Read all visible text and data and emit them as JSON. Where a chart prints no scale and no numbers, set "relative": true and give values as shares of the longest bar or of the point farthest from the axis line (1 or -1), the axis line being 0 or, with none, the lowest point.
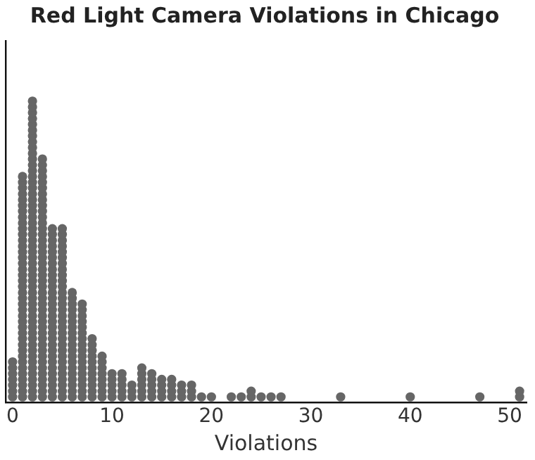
{
  "chart_data": {
    "type": "scatter",
    "title": "Red Light Camera Violations in Chicago",
    "xlabel": "Violations",
    "x": [
      0,
      0,
      0,
      0,
      0,
      0,
      0,
      1,
      1,
      1,
      1,
      1,
      1,
      1,
      1,
      1,
      1,
      1,
      1,
      1,
      1,
      1,
      1,
      1,
      1,
      1,
      1,
      1,
      1,
      1,
      1,
      1,
      1,
      1,
      1,
      1,
      1,
      1,
      1,
      1,
      1,
      1,
      1,
      1,
      1,
      1,
      2,
      2,
      2,
      2,
      2,
      2,
      2,
      2,
      2,
      2,
      2,
      2,
      2,
      2,
      2,
      2,
      2,
      2,
      2,
      2,
      2,
      2,
      2,
      2,
      2,
      2,
      2,
      2,
      2,
      2,
      2,
      2,
      2,
      2,
      2,
      2,
      2,
      2,
      2,
      2,
      2,
      2,
      2,
      2,
      2,
      2,
      2,
      2,
      2,
      2,
      2,
      2,
      3,
      3,
      3,
      3,
      3,
      3,
      3,
      3,
      3,
      3,
      3,
      3,
      3,
      3,
      3,
      3,
      3,
      3,
      3,
      3,
      3,
      3,
      3,
      3,
      3,
      3,
      3,
      3,
      3,
      3,
      3,
      3,
      3,
      3,
      3,
      3,
      3,
      3,
      3,
      3,
      3,
      3,
      4,
      4,
      4,
      4,
      4,
      4,
      4,
      4,
      4,
      4,
      4,
      4,
      4,
      4,
      4,
      4,
      4,
      4,
      4,
      4,
      4,
      4,
      4,
      4,
      4,
      4,
      4,
      4,
      4,
      4,
      5,
      5,
      5,
      5,
      5,
      5,
      5,
      5,
      5,
      5,
      5,
      5,
      5,
      5,
      5,
      5,
      5,
      5,
      5,
      5,
      5,
      5,
      5,
      5,
      5,
      5,
      5,
      5,
      5,
      5,
      6,
      6,
      6,
      6,
      6,
      6,
      6,
      6,
      6,
      6,
      6,
      6,
      6,
      6,
      6,
      6,
      6,
      6,
      6,
      7,
      7,
      7,
      7,
      7,
      7,
      7,
      7,
      7,
      7,
      7,
      7,
      7,
      7,
      7,
      7,
      7,
      8,
      8,
      8,
      8,
      8,
      8,
      8,
      8,
      8,
      8,
      8,
      9,
      9,
      9,
      9,
      9,
      9,
      9,
      9,
      10,
      10,
      10,
      10,
      10,
      11,
      11,
      11,
      11,
      11,
      12,
      12,
      12,
      13,
      13,
      13,
      13,
      13,
      13,
      14,
      14,
      14,
      14,
      14,
      15,
      15,
      15,
      15,
      16,
      16,
      16,
      16,
      17,
      17,
      17,
      18,
      18,
      18,
      19,
      20,
      22,
      23,
      24,
      24,
      25,
      26,
      27,
      33,
      40,
      47,
      51,
      51
    ],
    "values": [
      0.019,
      0.038,
      0.058,
      0.077,
      0.096,
      0.115,
      0.135,
      0.019,
      0.038,
      0.058,
      0.077,
      0.096,
      0.115,
      0.135,
      0.154,
      0.173,
      0.192,
      0.212,
      0.231,
      0.25,
      0.269,
      0.288,
      0.308,
      0.327,
      0.346,
      0.365,
      0.385,
      0.404,
      0.423,
      0.442,
      0.462,
      0.481,
      0.5,
      0.519,
      0.538,
      0.558,
      0.577,
      0.596,
      0.615,
      0.635,
      0.654,
      0.673,
      0.692,
      0.712,
      0.731,
      0.75,
      0.019,
      0.038,
      0.058,
      0.077,
      0.096,
      0.115,
      0.135,
      0.154,
      0.173,
      0.192,
      0.212,
      0.231,
      0.25,
      0.269,
      0.288,
      0.308,
      0.327,
      0.346,
      0.365,
      0.385,
      0.404,
      0.423,
      0.442,
      0.462,
      0.481,
      0.5,
      0.519,
      0.538,
      0.558,
      0.577,
      0.596,
      0.615,
      0.635,
      0.654,
      0.673,
      0.692,
      0.712,
      0.731,
      0.75,
      0.769,
      0.788,
      0.808,
      0.827,
      0.846,
      0.865,
      0.885,
      0.904,
      0.923,
      0.942,
      0.962,
      0.981,
      1,
      0.019,
      0.038,
      0.058,
      0.077,
      0.096,
      0.115,
      0.135,
      0.154,
      0.173,
      0.192,
      0.212,
      0.231,
      0.25,
      0.269,
      0.288,
      0.308,
      0.327,
      0.346,
      0.365,
      0.385,
      0.404,
      0.423,
      0.442,
      0.462,
      0.481,
      0.5,
      0.519,
      0.538,
      0.558,
      0.577,
      0.596,
      0.615,
      0.635,
      0.654,
      0.673,
      0.692,
      0.712,
      0.731,
      0.75,
      0.769,
      0.788,
      0.808,
      0.019,
      0.038,
      0.058,
      0.077,
      0.096,
      0.115,
      0.135,
      0.154,
      0.173,
      0.192,
      0.212,
      0.231,
      0.25,
      0.269,
      0.288,
      0.308,
      0.327,
      0.346,
      0.365,
      0.385,
      0.404,
      0.423,
      0.442,
      0.462,
      0.481,
      0.5,
      0.519,
      0.538,
      0.558,
      0.577,
      0.019,
      0.038,
      0.058,
      0.077,
      0.096,
      0.115,
      0.135,
      0.154,
      0.173,
      0.192,
      0.212,
      0.231,
      0.25,
      0.269,
      0.288,
      0.308,
      0.327,
      0.346,
      0.365,
      0.385,
      0.404,
      0.423,
      0.442,
      0.462,
      0.481,
      0.5,
      0.519,
      0.538,
      0.558,
      0.577,
      0.019,
      0.038,
      0.058,
      0.077,
      0.096,
      0.115,
      0.135,
      0.154,
      0.173,
      0.192,
      0.212,
      0.231,
      0.25,
      0.269,
      0.288,
      0.308,
      0.327,
      0.346,
      0.365,
      0.019,
      0.038,
      0.058,
      0.077,
      0.096,
      0.115,
      0.135,
      0.154,
      0.173,
      0.192,
      0.212,
      0.231,
      0.25,
      0.269,
      0.288,
      0.308,
      0.327,
      0.019,
      0.038,
      0.058,
      0.077,
      0.096,
      0.115,
      0.135,
      0.154,
      0.173,
      0.192,
      0.212,
      0.019,
      0.038,
      0.058,
      0.077,
      0.096,
      0.115,
      0.135,
      0.154,
      0.019,
      0.038,
      0.058,
      0.077,
      0.096,
      0.019,
      0.038,
      0.058,
      0.077,
      0.096,
      0.019,
      0.038,
      0.058,
      0.019,
      0.038,
      0.058,
      0.077,
      0.096,
      0.115,
      0.019,
      0.038,
      0.058,
      0.077,
      0.096,
      0.019,
      0.038,
      0.058,
      0.077,
      0.019,
      0.038,
      0.058,
      0.077,
      0.019,
      0.038,
      0.058,
      0.019,
      0.038,
      0.058,
      0.019,
      0.019,
      0.019,
      0.019,
      0.019,
      0.038,
      0.019,
      0.019,
      0.019,
      0.019,
      0.019,
      0.019,
      0.019,
      0.038
    ],
    "color": "#666666",
    "marker": "circle",
    "grid": false,
    "tick_labels": "x",
    "relative": true,
    "xlim": [
      -0.7,
      51.7
    ],
    "xticks": [
      0,
      10,
      20,
      30,
      40,
      50
    ]
  }
}
